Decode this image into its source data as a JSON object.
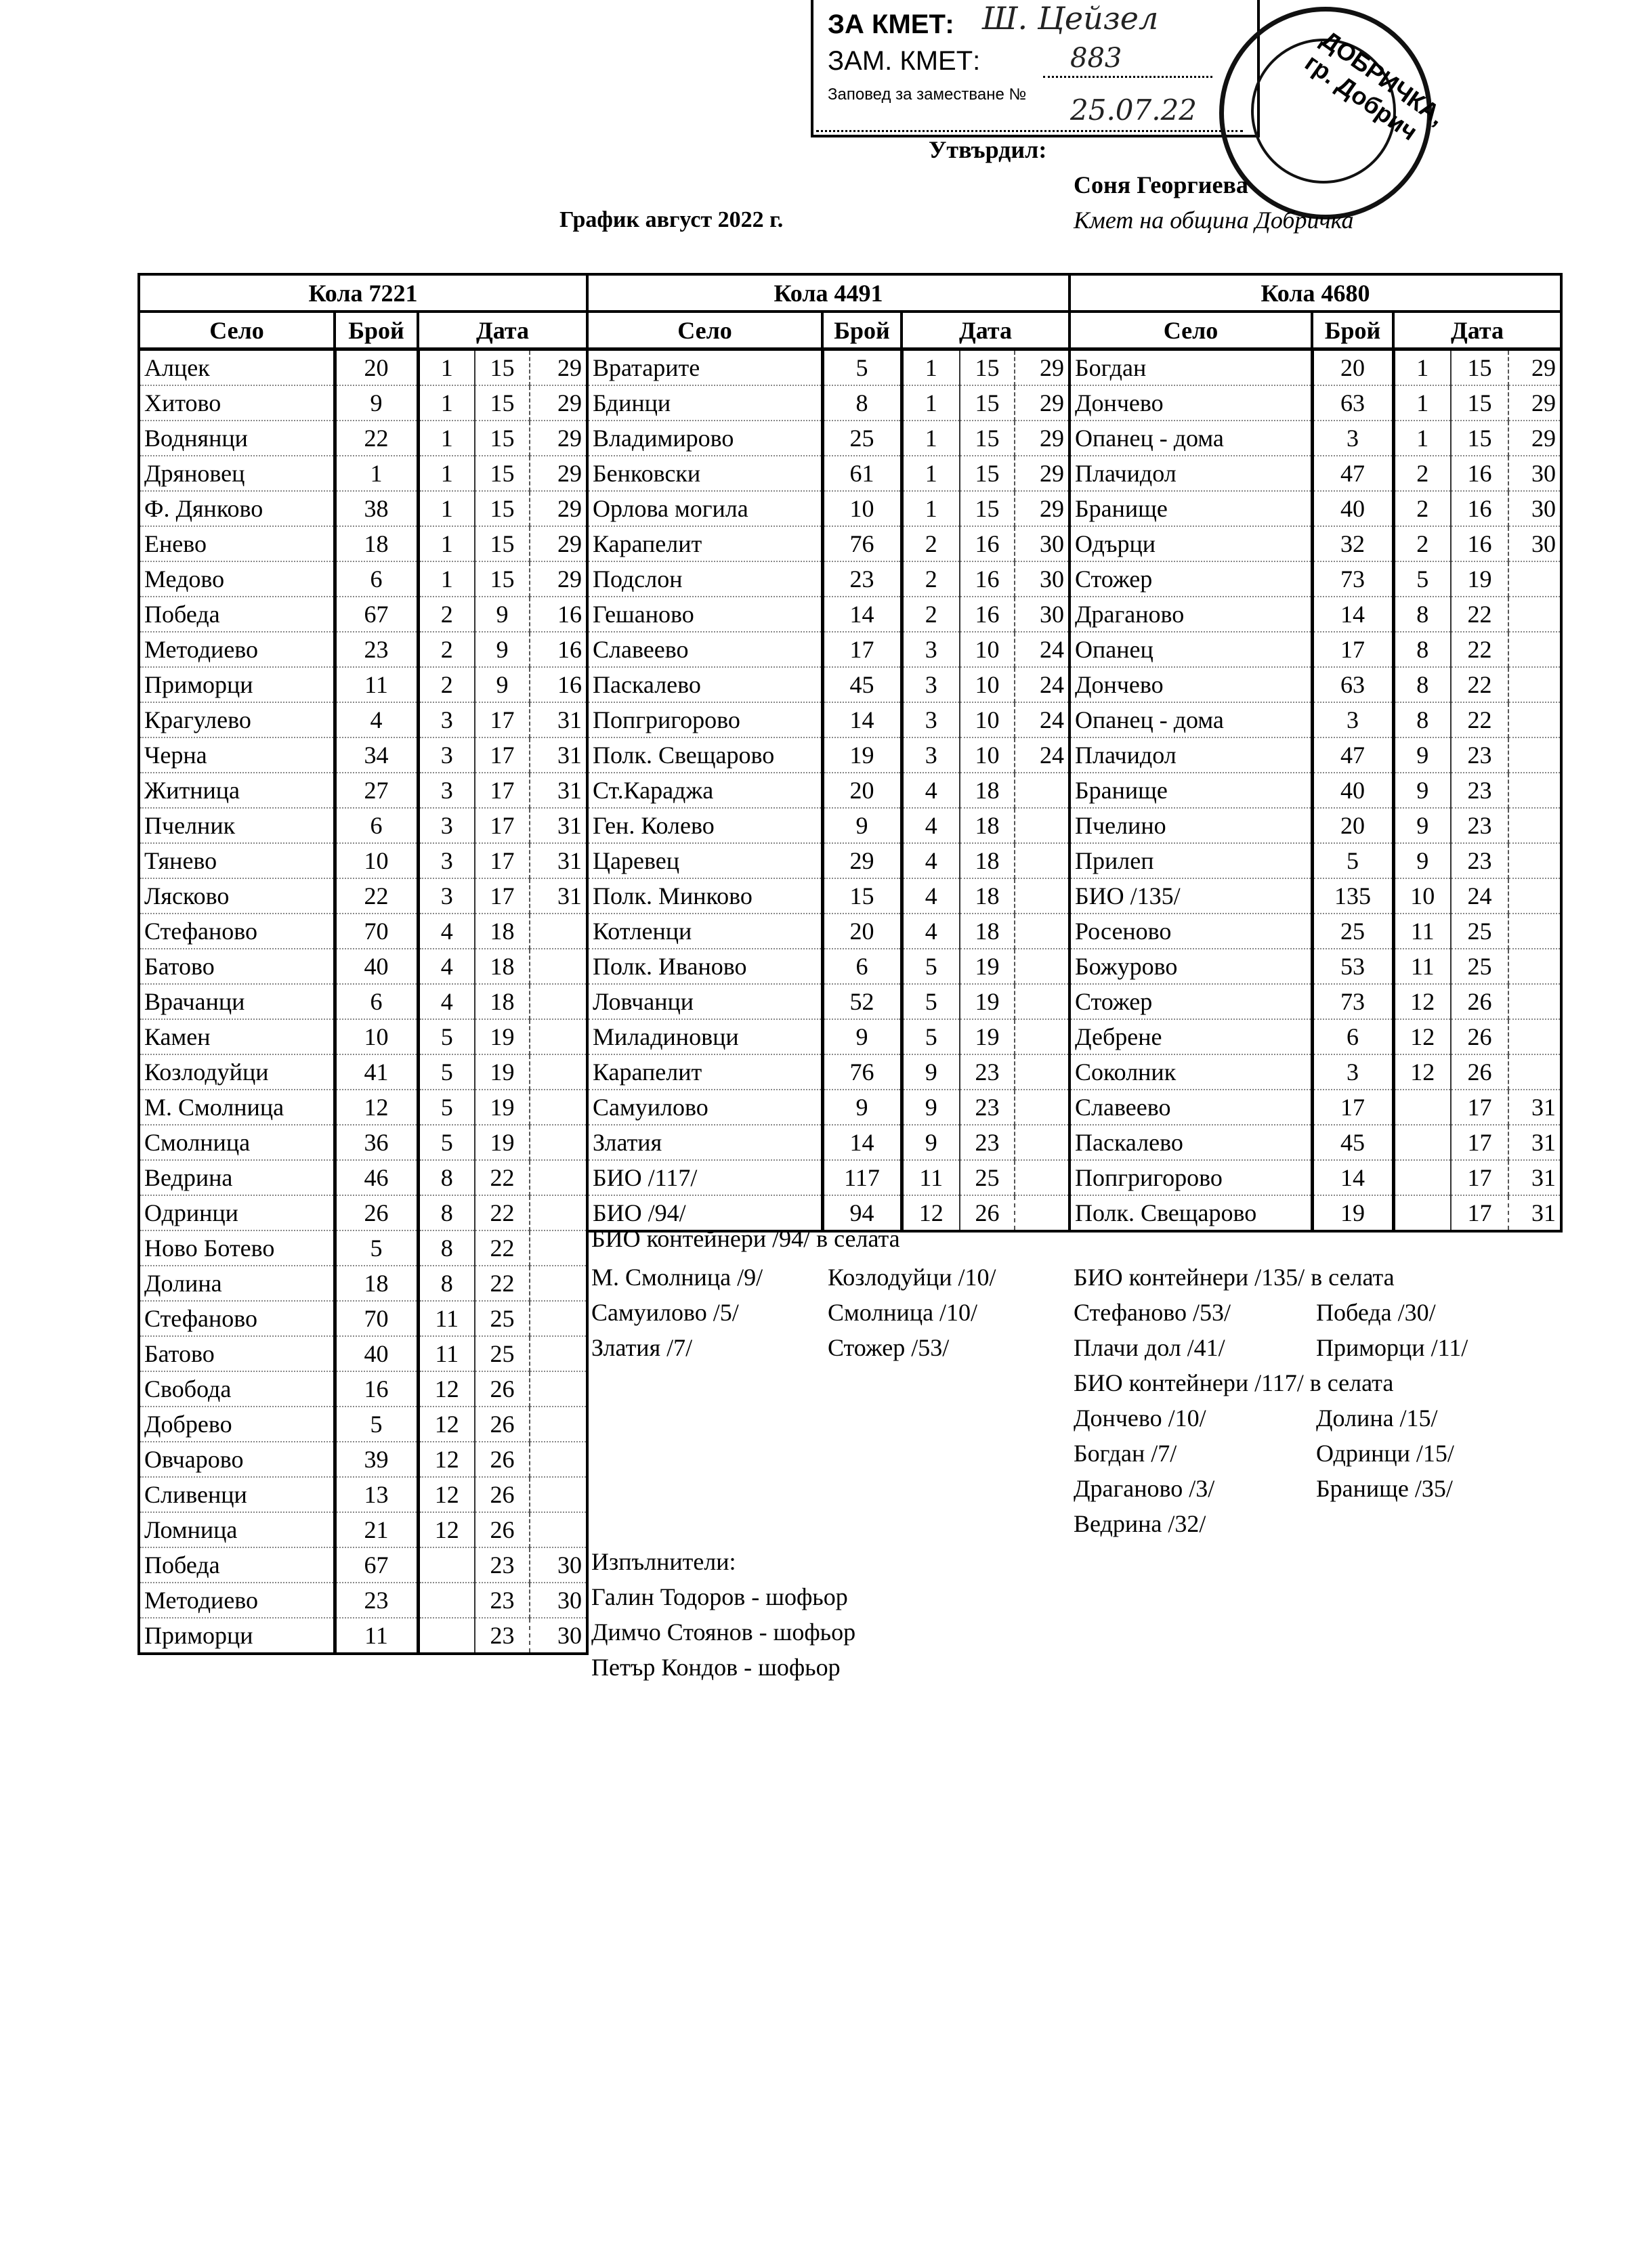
{
  "stamp": {
    "za_kmet": "ЗА КМЕТ:",
    "zam_kmet": "ЗАМ. КМЕТ:",
    "zapoved": "Заповед за заместване №",
    "handwritten_signature": "Ш. Цейзел",
    "handwritten_number": "883",
    "handwritten_date": "25.07.22",
    "round_seal_text": "ДОБРИЧКА, гр. Добрич"
  },
  "approval": {
    "label": "Утвърдил:",
    "name": "Соня Георгиева",
    "position": "Кмет  на община Добричка"
  },
  "title": "График август 2022 г.",
  "column_headers": {
    "village": "Село",
    "count": "Брой",
    "date": "Дата"
  },
  "tables": [
    {
      "vehicle": "Кола 7221",
      "rows": [
        [
          "Алцек",
          "20",
          "1",
          "15",
          "29"
        ],
        [
          "Хитово",
          "9",
          "1",
          "15",
          "29"
        ],
        [
          "Воднянци",
          "22",
          "1",
          "15",
          "29"
        ],
        [
          "Дряновец",
          "1",
          "1",
          "15",
          "29"
        ],
        [
          "Ф. Дянково",
          "38",
          "1",
          "15",
          "29"
        ],
        [
          "Енево",
          "18",
          "1",
          "15",
          "29"
        ],
        [
          "Медово",
          "6",
          "1",
          "15",
          "29"
        ],
        [
          "Победа",
          "67",
          "2",
          "9",
          "16"
        ],
        [
          "Методиево",
          "23",
          "2",
          "9",
          "16"
        ],
        [
          "Приморци",
          "11",
          "2",
          "9",
          "16"
        ],
        [
          "Крагулево",
          "4",
          "3",
          "17",
          "31"
        ],
        [
          "Черна",
          "34",
          "3",
          "17",
          "31"
        ],
        [
          "Житница",
          "27",
          "3",
          "17",
          "31"
        ],
        [
          "Пчелник",
          "6",
          "3",
          "17",
          "31"
        ],
        [
          "Тянево",
          "10",
          "3",
          "17",
          "31"
        ],
        [
          "Лясково",
          "22",
          "3",
          "17",
          "31"
        ],
        [
          "Стефаново",
          "70",
          "4",
          "18",
          ""
        ],
        [
          "Батово",
          "40",
          "4",
          "18",
          ""
        ],
        [
          "Врачанци",
          "6",
          "4",
          "18",
          ""
        ],
        [
          "Камен",
          "10",
          "5",
          "19",
          ""
        ],
        [
          "Козлодуйци",
          "41",
          "5",
          "19",
          ""
        ],
        [
          "М. Смолница",
          "12",
          "5",
          "19",
          ""
        ],
        [
          "Смолница",
          "36",
          "5",
          "19",
          ""
        ],
        [
          "Ведрина",
          "46",
          "8",
          "22",
          ""
        ],
        [
          "Одринци",
          "26",
          "8",
          "22",
          ""
        ],
        [
          "Ново Ботево",
          "5",
          "8",
          "22",
          ""
        ],
        [
          "Долина",
          "18",
          "8",
          "22",
          ""
        ],
        [
          "Стефаново",
          "70",
          "11",
          "25",
          ""
        ],
        [
          "Батово",
          "40",
          "11",
          "25",
          ""
        ],
        [
          "Свобода",
          "16",
          "12",
          "26",
          ""
        ],
        [
          "Добрево",
          "5",
          "12",
          "26",
          ""
        ],
        [
          "Овчарово",
          "39",
          "12",
          "26",
          ""
        ],
        [
          "Сливенци",
          "13",
          "12",
          "26",
          ""
        ],
        [
          "Ломница",
          "21",
          "12",
          "26",
          ""
        ],
        [
          "Победа",
          "67",
          "",
          "23",
          "30"
        ],
        [
          "Методиево",
          "23",
          "",
          "23",
          "30"
        ],
        [
          "Приморци",
          "11",
          "",
          "23",
          "30"
        ]
      ]
    },
    {
      "vehicle": "Кола 4491",
      "rows": [
        [
          "Вратарите",
          "5",
          "1",
          "15",
          "29"
        ],
        [
          "Бдинци",
          "8",
          "1",
          "15",
          "29"
        ],
        [
          "Владимирово",
          "25",
          "1",
          "15",
          "29"
        ],
        [
          "Бенковски",
          "61",
          "1",
          "15",
          "29"
        ],
        [
          "Орлова могила",
          "10",
          "1",
          "15",
          "29"
        ],
        [
          "Карапелит",
          "76",
          "2",
          "16",
          "30"
        ],
        [
          "Подслон",
          "23",
          "2",
          "16",
          "30"
        ],
        [
          "Гешаново",
          "14",
          "2",
          "16",
          "30"
        ],
        [
          "Славеево",
          "17",
          "3",
          "10",
          "24"
        ],
        [
          "Паскалево",
          "45",
          "3",
          "10",
          "24"
        ],
        [
          "Попгригорово",
          "14",
          "3",
          "10",
          "24"
        ],
        [
          "Полк. Свещарово",
          "19",
          "3",
          "10",
          "24"
        ],
        [
          "Ст.Караджа",
          "20",
          "4",
          "18",
          ""
        ],
        [
          "Ген. Колево",
          "9",
          "4",
          "18",
          ""
        ],
        [
          "Царевец",
          "29",
          "4",
          "18",
          ""
        ],
        [
          "Полк. Минково",
          "15",
          "4",
          "18",
          ""
        ],
        [
          "Котленци",
          "20",
          "4",
          "18",
          ""
        ],
        [
          "Полк. Иваново",
          "6",
          "5",
          "19",
          ""
        ],
        [
          "Ловчанци",
          "52",
          "5",
          "19",
          ""
        ],
        [
          "Миладиновци",
          "9",
          "5",
          "19",
          ""
        ],
        [
          "Карапелит",
          "76",
          "9",
          "23",
          ""
        ],
        [
          "Самуилово",
          "9",
          "9",
          "23",
          ""
        ],
        [
          "Златия",
          "14",
          "9",
          "23",
          ""
        ],
        [
          "БИО /117/",
          "117",
          "11",
          "25",
          ""
        ],
        [
          "БИО /94/",
          "94",
          "12",
          "26",
          ""
        ]
      ]
    },
    {
      "vehicle": "Кола 4680",
      "rows": [
        [
          "Богдан",
          "20",
          "1",
          "15",
          "29"
        ],
        [
          "Дончево",
          "63",
          "1",
          "15",
          "29"
        ],
        [
          "Опанец - дома",
          "3",
          "1",
          "15",
          "29"
        ],
        [
          "Плачидол",
          "47",
          "2",
          "16",
          "30"
        ],
        [
          "Бранище",
          "40",
          "2",
          "16",
          "30"
        ],
        [
          "Одърци",
          "32",
          "2",
          "16",
          "30"
        ],
        [
          "Стожер",
          "73",
          "5",
          "19",
          ""
        ],
        [
          "Драганово",
          "14",
          "8",
          "22",
          ""
        ],
        [
          "Опанец",
          "17",
          "8",
          "22",
          ""
        ],
        [
          "Дончево",
          "63",
          "8",
          "22",
          ""
        ],
        [
          "Опанец - дома",
          "3",
          "8",
          "22",
          ""
        ],
        [
          "Плачидол",
          "47",
          "9",
          "23",
          ""
        ],
        [
          "Бранище",
          "40",
          "9",
          "23",
          ""
        ],
        [
          "Пчелино",
          "20",
          "9",
          "23",
          ""
        ],
        [
          "Прилеп",
          "5",
          "9",
          "23",
          ""
        ],
        [
          "БИО /135/",
          "135",
          "10",
          "24",
          ""
        ],
        [
          "Росеново",
          "25",
          "11",
          "25",
          ""
        ],
        [
          "Божурово",
          "53",
          "11",
          "25",
          ""
        ],
        [
          "Стожер",
          "73",
          "12",
          "26",
          ""
        ],
        [
          "Дебрене",
          "6",
          "12",
          "26",
          ""
        ],
        [
          "Соколник",
          "3",
          "12",
          "26",
          ""
        ],
        [
          "Славеево",
          "17",
          "",
          "17",
          "31"
        ],
        [
          "Паскалево",
          "45",
          "",
          "17",
          "31"
        ],
        [
          "Попгригорово",
          "14",
          "",
          "17",
          "31"
        ],
        [
          "Полк. Свещарово",
          "19",
          "",
          "17",
          "31"
        ]
      ]
    }
  ],
  "bio_notes_94": {
    "heading": "БИО контейнери /94/ в селата",
    "col1": [
      "М. Смолница /9/",
      "Самуилово /5/",
      "Златия /7/"
    ],
    "col2": [
      "Козлодуйци /10/",
      "Смолница /10/",
      "Стожер /53/"
    ]
  },
  "bio_notes_135": {
    "heading": "БИО контейнери /135/ в селата",
    "col1": [
      "Стефаново /53/",
      "Плачи дол /41/"
    ],
    "col2": [
      "Победа /30/",
      "Приморци /11/"
    ]
  },
  "bio_notes_117": {
    "heading": "БИО контейнери /117/ в селата",
    "col1": [
      "Дончево /10/",
      "Богдан /7/",
      "Драганово /3/",
      "Ведрина /32/"
    ],
    "col2": [
      "Долина /15/",
      "Одринци /15/",
      "Бранище /35/"
    ]
  },
  "executors": {
    "heading": "Изпълнители:",
    "people": [
      "Галин Тодоров - шофьор",
      "Димчо Стоянов - шофьор",
      "Петър Кондов - шофьор"
    ]
  }
}
